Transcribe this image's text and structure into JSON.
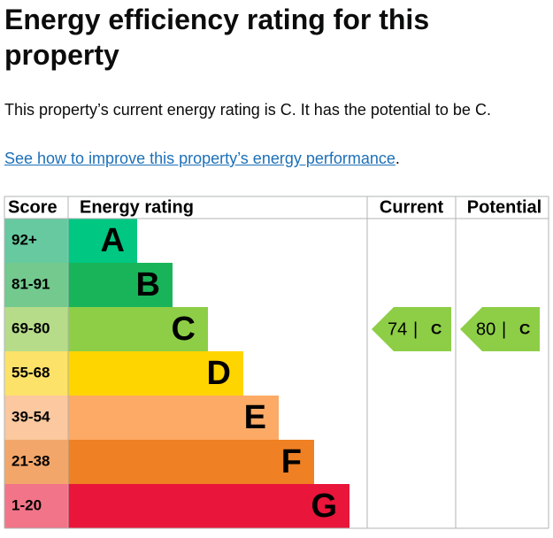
{
  "header": {
    "title": "Energy efficiency rating for this property"
  },
  "intro": "This property’s current energy rating is C. It has the potential to be C.",
  "link": {
    "text": "See how to improve this property’s energy performance",
    "suffix": "."
  },
  "table": {
    "headers": [
      "Score",
      "Energy rating",
      "Current",
      "Potential"
    ],
    "bands": [
      {
        "score": "92+",
        "letter": "A",
        "color": "#00c781",
        "light": "#66c9a0"
      },
      {
        "score": "81-91",
        "letter": "B",
        "color": "#19b459",
        "light": "#73c98e"
      },
      {
        "score": "69-80",
        "letter": "C",
        "color": "#8dce46",
        "light": "#b6dc8a"
      },
      {
        "score": "55-68",
        "letter": "D",
        "color": "#ffd500",
        "light": "#fde26a"
      },
      {
        "score": "39-54",
        "letter": "E",
        "color": "#fcaa65",
        "light": "#fbc89f"
      },
      {
        "score": "21-38",
        "letter": "F",
        "color": "#ef8023",
        "light": "#f3a66a"
      },
      {
        "score": "1-20",
        "letter": "G",
        "color": "#e9153b",
        "light": "#f27488"
      }
    ],
    "current": {
      "score": 74,
      "separator": "|",
      "band": "C"
    },
    "potential": {
      "score": 80,
      "separator": "|",
      "band": "C"
    }
  }
}
